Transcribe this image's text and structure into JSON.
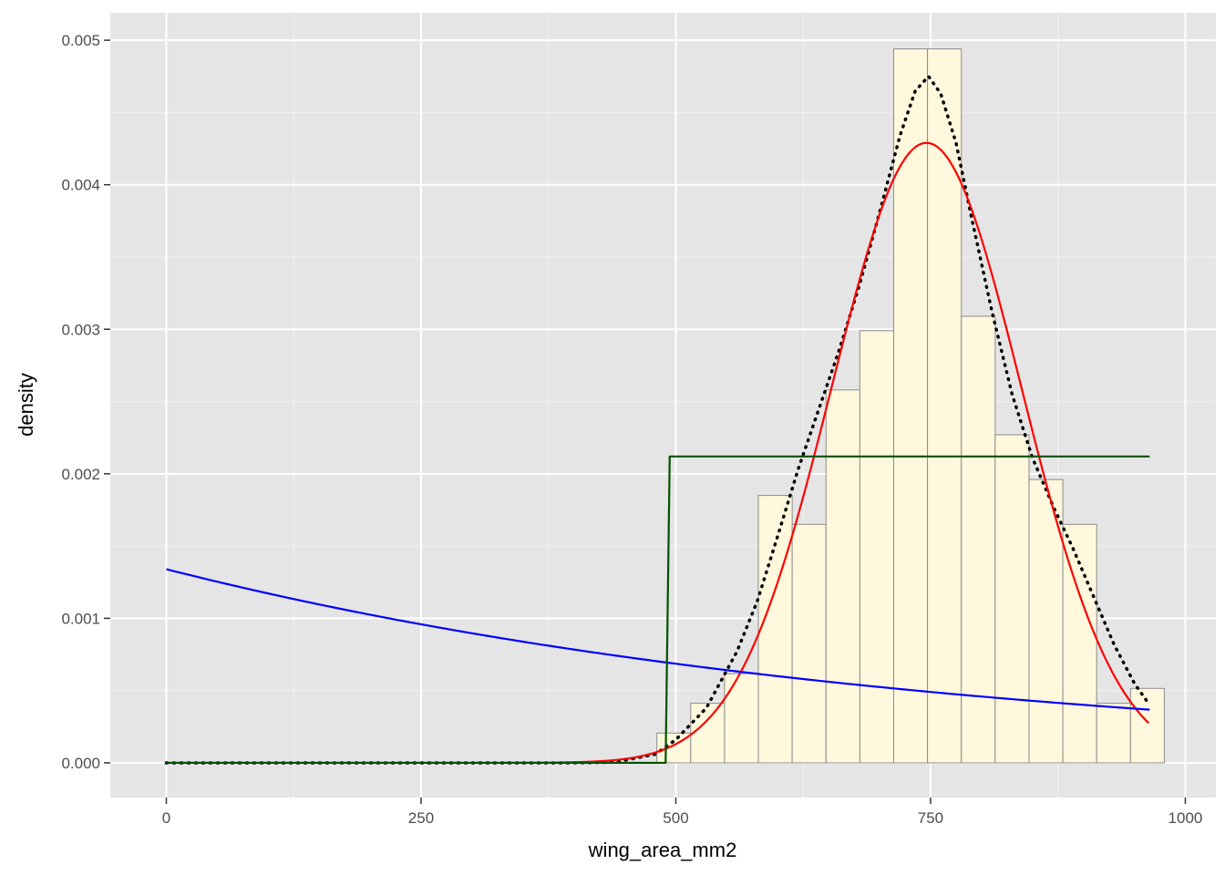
{
  "chart_data": {
    "type": "bar",
    "title": "",
    "xlabel": "wing_area_mm2",
    "ylabel": "density",
    "xlim": [
      -55,
      1030
    ],
    "ylim": [
      -0.00024,
      0.00519
    ],
    "x_ticks": [
      0,
      250,
      500,
      750,
      1000
    ],
    "x_tick_labels": [
      "0",
      "250",
      "500",
      "750",
      "1000"
    ],
    "y_ticks": [
      0.0,
      0.001,
      0.002,
      0.003,
      0.004,
      0.005
    ],
    "y_tick_labels": [
      "0.000",
      "0.001",
      "0.002",
      "0.003",
      "0.004",
      "0.005"
    ],
    "grid": true,
    "panel_background": "#e5e5e5",
    "histogram": {
      "bin_width": 33.2,
      "fill": "#fff8dc",
      "stroke": "#8c8c8c",
      "bins": [
        {
          "x_left": -16.6,
          "x_right": 16.6,
          "density": 0.0
        },
        {
          "x_left": 481.4,
          "x_right": 514.6,
          "density": 0.000206
        },
        {
          "x_left": 514.6,
          "x_right": 547.8,
          "density": 0.000412
        },
        {
          "x_left": 547.8,
          "x_right": 581.0,
          "density": 0.000617
        },
        {
          "x_left": 581.0,
          "x_right": 614.2,
          "density": 0.00185
        },
        {
          "x_left": 614.2,
          "x_right": 647.4,
          "density": 0.00165
        },
        {
          "x_left": 647.4,
          "x_right": 680.6,
          "density": 0.00258
        },
        {
          "x_left": 680.6,
          "x_right": 713.8,
          "density": 0.00299
        },
        {
          "x_left": 713.8,
          "x_right": 747.0,
          "density": 0.00494
        },
        {
          "x_left": 747.0,
          "x_right": 780.2,
          "density": 0.00494
        },
        {
          "x_left": 780.2,
          "x_right": 813.4,
          "density": 0.00309
        },
        {
          "x_left": 813.4,
          "x_right": 846.6,
          "density": 0.00227
        },
        {
          "x_left": 846.6,
          "x_right": 879.8,
          "density": 0.00196
        },
        {
          "x_left": 879.8,
          "x_right": 913.0,
          "density": 0.00165
        },
        {
          "x_left": 913.0,
          "x_right": 946.2,
          "density": 0.000412
        },
        {
          "x_left": 946.2,
          "x_right": 979.4,
          "density": 0.000515
        }
      ]
    },
    "series": [
      {
        "type": "line",
        "color": "#000000",
        "style": "dotted",
        "points": [
          [
            0,
            0
          ],
          [
            400,
            0
          ],
          [
            440,
            4e-06
          ],
          [
            480,
            6e-05
          ],
          [
            500,
            0.00016
          ],
          [
            530,
            0.00038
          ],
          [
            560,
            0.00077
          ],
          [
            580,
            0.00112
          ],
          [
            600,
            0.00157
          ],
          [
            620,
            0.00203
          ],
          [
            640,
            0.00244
          ],
          [
            660,
            0.00285
          ],
          [
            680,
            0.0033
          ],
          [
            700,
            0.00381
          ],
          [
            720,
            0.00434
          ],
          [
            735,
            0.00465
          ],
          [
            748,
            0.00475
          ],
          [
            760,
            0.00463
          ],
          [
            775,
            0.00429
          ],
          [
            790,
            0.00378
          ],
          [
            810,
            0.00313
          ],
          [
            830,
            0.00255
          ],
          [
            850,
            0.00211
          ],
          [
            870,
            0.00178
          ],
          [
            890,
            0.00148
          ],
          [
            910,
            0.00115
          ],
          [
            930,
            0.00082
          ],
          [
            950,
            0.00055
          ],
          [
            965,
            0.0004
          ]
        ]
      },
      {
        "type": "normal_curve",
        "color": "#ff0000",
        "style": "solid",
        "mean": 746,
        "sd": 93,
        "x_range": [
          0,
          965
        ]
      },
      {
        "type": "exponential_curve",
        "color": "#0000ff",
        "style": "solid",
        "rate": 0.00134,
        "x_range": [
          0,
          965
        ]
      },
      {
        "type": "uniform_cdf_step",
        "color": "#005200",
        "style": "solid",
        "points": [
          [
            0,
            0
          ],
          [
            490,
            0
          ],
          [
            494,
            0.00212
          ],
          [
            965,
            0.00212
          ]
        ]
      }
    ]
  }
}
